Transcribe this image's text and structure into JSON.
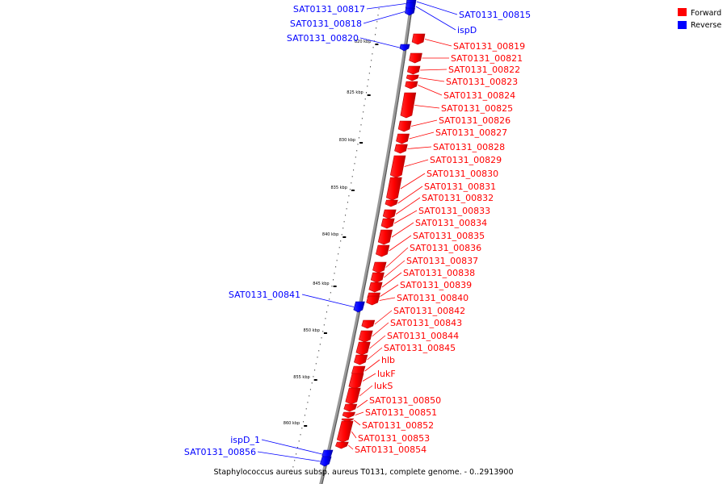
{
  "caption": "Staphylococcus aureus subsp. aureus T0131, complete genome. - 0..2913900",
  "legend": [
    {
      "label": "Forward",
      "color": "#ff0000"
    },
    {
      "label": "Reverse",
      "color": "#0000ff"
    }
  ],
  "colors": {
    "forward": "#ff0000",
    "forward_dark": "#b80000",
    "reverse": "#0000ff",
    "reverse_dark": "#0000a8",
    "backbone": "#9a9a9a",
    "backbone_dark": "#555555",
    "ruler": "#000000"
  },
  "ticks": [
    {
      "kbp": 820,
      "label": "820 kbp"
    },
    {
      "kbp": 825,
      "label": "825 kbp"
    },
    {
      "kbp": 830,
      "label": "830 kbp"
    },
    {
      "kbp": 835,
      "label": "835 kbp"
    },
    {
      "kbp": 840,
      "label": "840 kbp"
    },
    {
      "kbp": 845,
      "label": "845 kbp"
    },
    {
      "kbp": 850,
      "label": "850 kbp"
    },
    {
      "kbp": 855,
      "label": "855 kbp"
    },
    {
      "kbp": 860,
      "label": "860 kbp"
    }
  ],
  "genes": [
    {
      "name": "SAT0131_00815",
      "strand": "reverse"
    },
    {
      "name": "SAT0131_00817",
      "strand": "reverse"
    },
    {
      "name": "ispD",
      "strand": "reverse"
    },
    {
      "name": "SAT0131_00818",
      "strand": "reverse"
    },
    {
      "name": "SAT0131_00820",
      "strand": "reverse"
    },
    {
      "name": "SAT0131_00819",
      "strand": "forward"
    },
    {
      "name": "SAT0131_00821",
      "strand": "forward"
    },
    {
      "name": "SAT0131_00822",
      "strand": "forward"
    },
    {
      "name": "SAT0131_00823",
      "strand": "forward"
    },
    {
      "name": "SAT0131_00824",
      "strand": "forward"
    },
    {
      "name": "SAT0131_00825",
      "strand": "forward"
    },
    {
      "name": "SAT0131_00826",
      "strand": "forward"
    },
    {
      "name": "SAT0131_00827",
      "strand": "forward"
    },
    {
      "name": "SAT0131_00828",
      "strand": "forward"
    },
    {
      "name": "SAT0131_00829",
      "strand": "forward"
    },
    {
      "name": "SAT0131_00830",
      "strand": "forward"
    },
    {
      "name": "SAT0131_00831",
      "strand": "forward"
    },
    {
      "name": "SAT0131_00832",
      "strand": "forward"
    },
    {
      "name": "SAT0131_00833",
      "strand": "forward"
    },
    {
      "name": "SAT0131_00834",
      "strand": "forward"
    },
    {
      "name": "SAT0131_00835",
      "strand": "forward"
    },
    {
      "name": "SAT0131_00836",
      "strand": "forward"
    },
    {
      "name": "SAT0131_00837",
      "strand": "forward"
    },
    {
      "name": "SAT0131_00838",
      "strand": "forward"
    },
    {
      "name": "SAT0131_00839",
      "strand": "forward"
    },
    {
      "name": "SAT0131_00841",
      "strand": "reverse"
    },
    {
      "name": "SAT0131_00840",
      "strand": "forward"
    },
    {
      "name": "SAT0131_00842",
      "strand": "forward"
    },
    {
      "name": "SAT0131_00843",
      "strand": "forward"
    },
    {
      "name": "SAT0131_00844",
      "strand": "forward"
    },
    {
      "name": "SAT0131_00845",
      "strand": "forward"
    },
    {
      "name": "hlb",
      "strand": "forward"
    },
    {
      "name": "lukF",
      "strand": "forward"
    },
    {
      "name": "lukS",
      "strand": "forward"
    },
    {
      "name": "SAT0131_00850",
      "strand": "forward"
    },
    {
      "name": "SAT0131_00851",
      "strand": "forward"
    },
    {
      "name": "SAT0131_00852",
      "strand": "forward"
    },
    {
      "name": "SAT0131_00853",
      "strand": "forward"
    },
    {
      "name": "SAT0131_00854",
      "strand": "forward"
    },
    {
      "name": "ispD_1",
      "strand": "reverse"
    },
    {
      "name": "SAT0131_00856",
      "strand": "reverse"
    }
  ]
}
